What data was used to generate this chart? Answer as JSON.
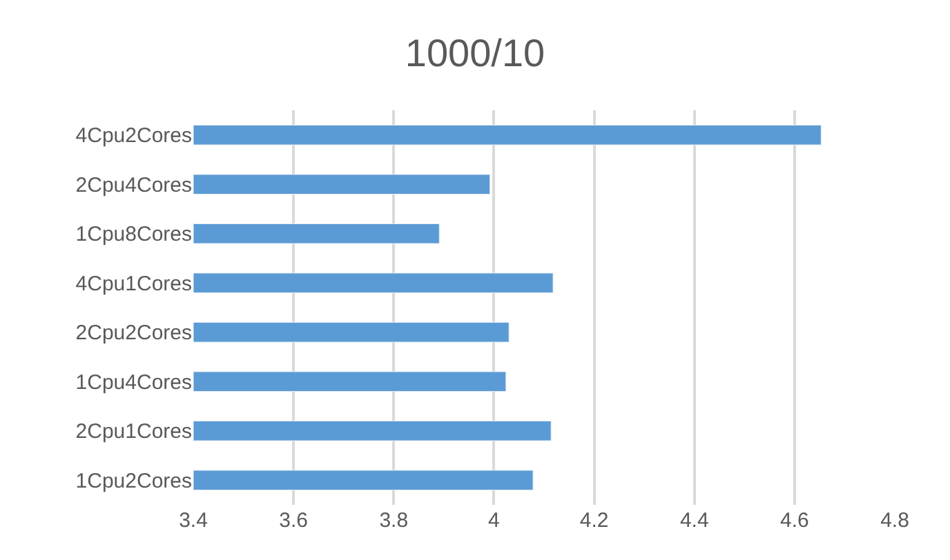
{
  "chart_data": {
    "type": "bar",
    "orientation": "horizontal",
    "title": "1000/10",
    "categories": [
      "4Cpu2Cores",
      "2Cpu4Cores",
      "1Cpu8Cores",
      "4Cpu1Cores",
      "2Cpu2Cores",
      "1Cpu4Cores",
      "2Cpu1Cores",
      "1Cpu2Cores"
    ],
    "values": [
      4.653,
      3.992,
      3.891,
      4.118,
      4.03,
      4.024,
      4.114,
      4.078
    ],
    "color": "#5b9bd5",
    "xlim": [
      3.4,
      4.8
    ],
    "xticks": [
      3.4,
      3.6,
      3.8,
      4,
      4.2,
      4.4,
      4.6,
      4.8
    ],
    "grid": "x",
    "legend": false
  }
}
